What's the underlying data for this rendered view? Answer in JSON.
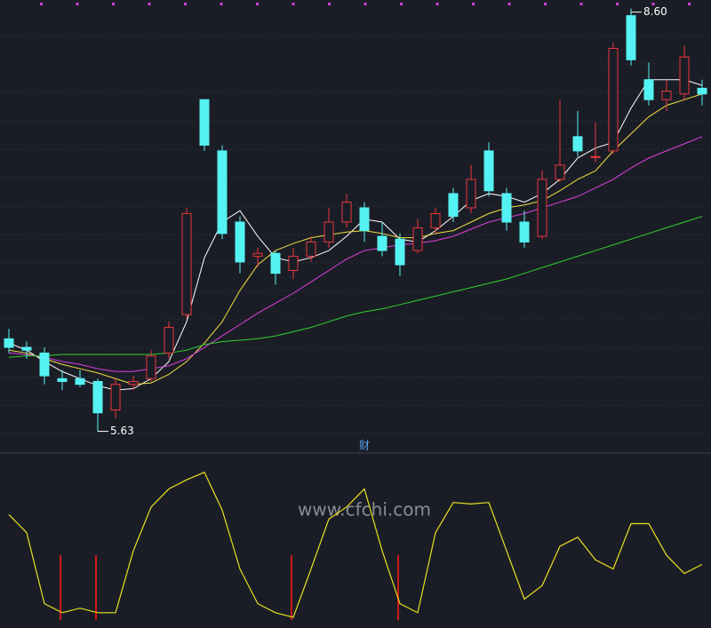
{
  "chart_data": [
    {
      "type": "candlestick",
      "open": [
        6.28,
        6.22,
        6.18,
        6.0,
        6.0,
        5.98,
        5.78,
        5.96,
        6.0,
        6.18,
        6.45,
        7.96,
        7.6,
        7.1,
        6.86,
        6.88,
        6.76,
        6.86,
        6.96,
        7.1,
        7.2,
        7.0,
        6.98,
        6.9,
        7.06,
        7.3,
        7.2,
        7.6,
        7.3,
        7.1,
        7.0,
        7.4,
        7.7,
        7.56,
        7.6,
        8.55,
        8.1,
        7.96,
        8.0,
        8.04
      ],
      "high": [
        6.35,
        6.26,
        6.22,
        6.06,
        6.06,
        6.0,
        6.0,
        6.02,
        6.2,
        6.4,
        7.2,
        7.96,
        7.64,
        7.14,
        6.92,
        6.9,
        6.92,
        7.0,
        7.2,
        7.3,
        7.24,
        7.1,
        7.02,
        7.12,
        7.2,
        7.34,
        7.5,
        7.66,
        7.34,
        7.18,
        7.46,
        7.96,
        7.88,
        7.8,
        8.36,
        8.6,
        8.22,
        8.1,
        8.34,
        8.1
      ],
      "low": [
        6.18,
        6.14,
        5.96,
        5.92,
        5.94,
        5.63,
        5.72,
        5.92,
        5.98,
        6.14,
        6.42,
        7.6,
        6.98,
        6.74,
        6.78,
        6.66,
        6.7,
        6.82,
        6.92,
        7.06,
        6.96,
        6.86,
        6.72,
        6.88,
        7.02,
        7.1,
        7.16,
        7.28,
        7.04,
        6.92,
        6.98,
        7.38,
        7.56,
        7.52,
        7.58,
        8.2,
        7.92,
        7.88,
        7.96,
        7.92
      ],
      "close": [
        6.22,
        6.2,
        6.02,
        5.98,
        5.96,
        5.76,
        5.96,
        5.98,
        6.16,
        6.36,
        7.16,
        7.64,
        7.02,
        6.82,
        6.88,
        6.74,
        6.86,
        6.96,
        7.1,
        7.24,
        7.04,
        6.9,
        6.8,
        7.06,
        7.16,
        7.14,
        7.4,
        7.32,
        7.1,
        6.96,
        7.4,
        7.5,
        7.6,
        7.56,
        8.32,
        8.24,
        7.96,
        8.02,
        8.26,
        8.0
      ],
      "up_color": "#e8383d",
      "down_color": "#54f2f2",
      "series": [
        {
          "color": "#ffffff",
          "values": [
            6.25,
            6.2,
            6.12,
            6.05,
            6.0,
            5.95,
            5.92,
            5.93,
            6.0,
            6.12,
            6.4,
            6.85,
            7.1,
            7.18,
            7.0,
            6.85,
            6.82,
            6.85,
            6.9,
            7.0,
            7.12,
            7.1,
            6.98,
            6.96,
            7.04,
            7.14,
            7.25,
            7.3,
            7.28,
            7.24,
            7.3,
            7.4,
            7.55,
            7.62,
            7.66,
            7.9,
            8.1,
            8.1,
            8.1,
            8.06
          ]
        },
        {
          "color": "#f0e040",
          "values": [
            6.2,
            6.18,
            6.14,
            6.1,
            6.07,
            6.04,
            6.0,
            5.96,
            5.97,
            6.03,
            6.12,
            6.25,
            6.4,
            6.62,
            6.8,
            6.9,
            6.95,
            6.99,
            7.01,
            7.03,
            7.04,
            7.02,
            6.99,
            6.99,
            7.02,
            7.04,
            7.1,
            7.16,
            7.2,
            7.22,
            7.25,
            7.32,
            7.4,
            7.46,
            7.6,
            7.72,
            7.84,
            7.92,
            7.96,
            8.0
          ]
        },
        {
          "color": "#e040e0",
          "values": [
            6.18,
            6.17,
            6.15,
            6.12,
            6.1,
            6.07,
            6.05,
            6.05,
            6.07,
            6.09,
            6.14,
            6.22,
            6.3,
            6.38,
            6.46,
            6.53,
            6.6,
            6.68,
            6.76,
            6.84,
            6.9,
            6.92,
            6.94,
            6.95,
            6.97,
            7.0,
            7.05,
            7.1,
            7.13,
            7.16,
            7.2,
            7.24,
            7.28,
            7.34,
            7.4,
            7.48,
            7.55,
            7.6,
            7.65,
            7.7
          ]
        },
        {
          "color": "#30d030",
          "values": [
            6.15,
            6.16,
            6.16,
            6.17,
            6.17,
            6.17,
            6.17,
            6.17,
            6.17,
            6.18,
            6.2,
            6.24,
            6.26,
            6.27,
            6.28,
            6.3,
            6.33,
            6.36,
            6.4,
            6.44,
            6.47,
            6.49,
            6.52,
            6.55,
            6.58,
            6.61,
            6.64,
            6.67,
            6.7,
            6.74,
            6.78,
            6.82,
            6.86,
            6.9,
            6.94,
            6.98,
            7.02,
            7.06,
            7.1,
            7.14
          ]
        }
      ],
      "annotations": [
        {
          "value": 8.6,
          "label": "8.60"
        },
        {
          "value": 5.63,
          "label": "5.63"
        }
      ],
      "ylim": [
        5.54,
        8.66
      ]
    },
    {
      "type": "line",
      "panel_label": "财",
      "watermark": "www.cfchi.com",
      "series": [
        {
          "color": "#e8e020",
          "values": [
            71,
            59,
            12,
            6,
            9,
            6,
            6,
            47,
            76,
            88,
            94,
            99,
            74,
            35,
            12,
            6,
            3,
            35,
            68,
            76,
            88,
            47,
            12,
            6,
            59,
            79,
            78,
            79,
            47,
            15,
            24,
            50,
            56,
            41,
            35,
            65,
            65,
            44,
            32,
            38
          ]
        }
      ],
      "signals": [
        3,
        5,
        16,
        22
      ],
      "signal_color": "#d01818",
      "ylim": [
        0,
        100
      ]
    }
  ]
}
